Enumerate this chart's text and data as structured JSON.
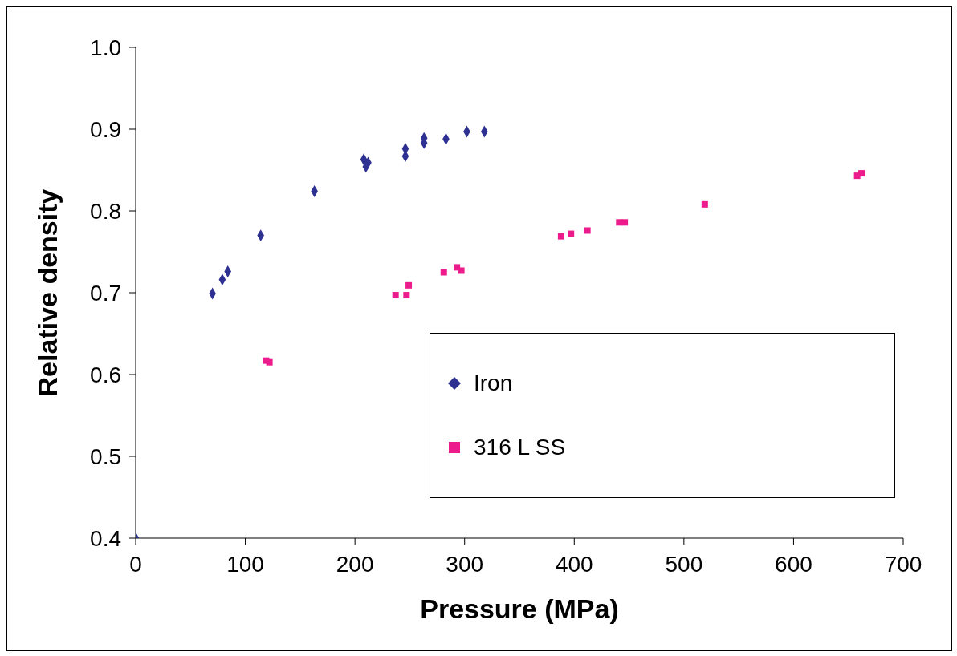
{
  "chart_data": {
    "type": "scatter",
    "xlabel": "Pressure (MPa)",
    "ylabel": "Relative density",
    "xlim": [
      0,
      700
    ],
    "xticks": [
      0,
      100,
      200,
      300,
      400,
      500,
      600,
      700
    ],
    "ylim": [
      0.4,
      1.0
    ],
    "yticks": [
      {
        "value": 0.4,
        "label": "0.4"
      },
      {
        "value": 0.5,
        "label": "0.5"
      },
      {
        "value": 0.6,
        "label": "0.6"
      },
      {
        "value": 0.7,
        "label": "0.7"
      },
      {
        "value": 0.8,
        "label": "0.8"
      },
      {
        "value": 0.9,
        "label": "0.9"
      },
      {
        "value": 1.0,
        "label": "1.0"
      }
    ],
    "grid": false,
    "legend": "bottom right",
    "series": [
      {
        "name": "Iron",
        "color": "#2e3192",
        "marker": "diamond",
        "x": [
          0,
          70,
          79,
          84,
          114,
          163,
          208,
          212,
          210,
          246,
          246,
          263,
          263,
          283,
          302,
          318
        ],
        "values": [
          0.4,
          0.699,
          0.716,
          0.726,
          0.77,
          0.824,
          0.863,
          0.859,
          0.854,
          0.876,
          0.867,
          0.889,
          0.883,
          0.888,
          0.897,
          0.897
        ]
      },
      {
        "name": "316 L SS",
        "color": "#ec1c8c",
        "marker": "square",
        "x": [
          119,
          122,
          237,
          247,
          249,
          281,
          293,
          297,
          388,
          397,
          412,
          441,
          446,
          519,
          658,
          662
        ],
        "values": [
          0.617,
          0.615,
          0.697,
          0.697,
          0.709,
          0.725,
          0.731,
          0.727,
          0.769,
          0.772,
          0.776,
          0.786,
          0.786,
          0.808,
          0.843,
          0.846
        ]
      }
    ]
  }
}
